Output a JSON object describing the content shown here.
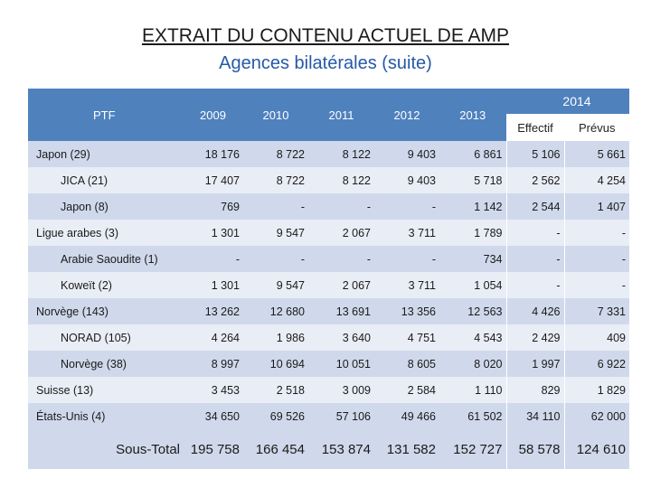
{
  "title": "EXTRAIT DU CONTENU ACTUEL DE AMP",
  "subtitle": "Agences bilatérales (suite)",
  "table": {
    "header": {
      "ptf": "PTF",
      "years": [
        "2009",
        "2010",
        "2011",
        "2012",
        "2013"
      ],
      "year2014": "2014",
      "effectif": "Effectif",
      "prevus": "Prévus"
    },
    "rows": [
      {
        "label": "Japon (29)",
        "indent": false,
        "values": [
          "18 176",
          "8 722",
          "8 122",
          "9 403",
          "6 861",
          "5 106",
          "5 661"
        ]
      },
      {
        "label": "JICA (21)",
        "indent": true,
        "values": [
          "17 407",
          "8 722",
          "8 122",
          "9 403",
          "5 718",
          "2 562",
          "4 254"
        ]
      },
      {
        "label": "Japon (8)",
        "indent": true,
        "values": [
          "769",
          "-",
          "-",
          "-",
          "1 142",
          "2 544",
          "1 407"
        ]
      },
      {
        "label": "Ligue arabes (3)",
        "indent": false,
        "values": [
          "1 301",
          "9 547",
          "2 067",
          "3 711",
          "1 789",
          "-",
          "-"
        ]
      },
      {
        "label": "Arabie Saoudite (1)",
        "indent": true,
        "values": [
          "-",
          "-",
          "-",
          "-",
          "734",
          "-",
          "-"
        ]
      },
      {
        "label": "Koweït (2)",
        "indent": true,
        "values": [
          "1 301",
          "9 547",
          "2 067",
          "3 711",
          "1 054",
          "-",
          "-"
        ]
      },
      {
        "label": "Norvège (143)",
        "indent": false,
        "values": [
          "13 262",
          "12 680",
          "13 691",
          "13 356",
          "12 563",
          "4 426",
          "7 331"
        ]
      },
      {
        "label": "NORAD (105)",
        "indent": true,
        "values": [
          "4 264",
          "1 986",
          "3 640",
          "4 751",
          "4 543",
          "2 429",
          "409"
        ]
      },
      {
        "label": "Norvège (38)",
        "indent": true,
        "values": [
          "8 997",
          "10 694",
          "10 051",
          "8 605",
          "8 020",
          "1 997",
          "6 922"
        ]
      },
      {
        "label": "Suisse (13)",
        "indent": false,
        "values": [
          "3 453",
          "2 518",
          "3 009",
          "2 584",
          "1 110",
          "829",
          "1 829"
        ]
      },
      {
        "label": "États-Unis (4)",
        "indent": false,
        "values": [
          "34 650",
          "69 526",
          "57 106",
          "49 466",
          "61 502",
          "34 110",
          "62 000"
        ]
      }
    ],
    "total": {
      "label": "Sous-Total",
      "values": [
        "195 758",
        "166 454",
        "153 874",
        "131 582",
        "152 727",
        "58 578",
        "124 610"
      ]
    }
  }
}
